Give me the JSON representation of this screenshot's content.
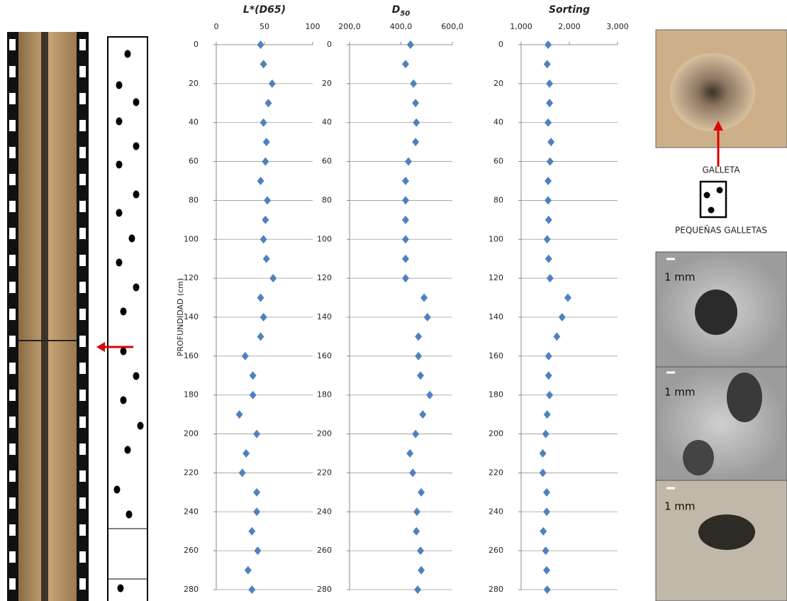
{
  "chart_data": [
    {
      "type": "scatter",
      "title": "L*(D65)",
      "y_label": "PROFUNDIDAD (cm)",
      "color": "#4f81bd",
      "x": [
        46,
        49,
        58,
        54,
        49,
        52,
        51,
        46,
        53,
        51,
        49,
        52,
        59,
        46,
        49,
        46,
        30,
        38,
        38,
        24,
        42,
        31,
        27,
        42,
        42,
        37,
        43,
        33,
        37
      ],
      "y": [
        0,
        10,
        20,
        30,
        40,
        50,
        60,
        70,
        80,
        90,
        100,
        110,
        120,
        130,
        140,
        150,
        160,
        170,
        180,
        190,
        200,
        210,
        220,
        230,
        240,
        250,
        260,
        270,
        280
      ],
      "xlim": [
        0,
        100
      ],
      "xticks": [
        0,
        50,
        100
      ],
      "ylim": [
        0,
        280
      ],
      "yticks": [
        0,
        20,
        40,
        60,
        80,
        100,
        120,
        140,
        160,
        180,
        200,
        220,
        240,
        260,
        280
      ],
      "grid": true
    },
    {
      "type": "scatter",
      "title": "D",
      "title_subscript": "50",
      "color": "#4f81bd",
      "x": [
        437,
        418,
        449,
        457,
        460,
        457,
        429,
        418,
        418,
        418,
        418,
        418,
        418,
        490,
        503,
        468,
        468,
        476,
        512,
        485,
        457,
        435,
        446,
        479,
        462,
        460,
        476,
        479,
        465
      ],
      "y": [
        0,
        10,
        20,
        30,
        40,
        50,
        60,
        70,
        80,
        90,
        100,
        110,
        120,
        130,
        140,
        150,
        160,
        170,
        180,
        190,
        200,
        210,
        220,
        230,
        240,
        250,
        260,
        270,
        280
      ],
      "xlim": [
        200,
        600
      ],
      "xticks": [
        {
          "value": 200,
          "label": "200,0"
        },
        {
          "value": 400,
          "label": "400,0"
        },
        {
          "value": 600,
          "label": "600,0"
        }
      ],
      "ylim": [
        0,
        280
      ],
      "yticks": [
        0,
        20,
        40,
        60,
        80,
        100,
        120,
        140,
        160,
        180,
        200,
        220,
        240,
        260,
        280
      ],
      "grid": true
    },
    {
      "type": "scatter",
      "title": "Sorting",
      "color": "#4f81bd",
      "x": [
        1560,
        1540,
        1590,
        1590,
        1560,
        1620,
        1600,
        1560,
        1560,
        1570,
        1540,
        1570,
        1600,
        1970,
        1850,
        1740,
        1570,
        1570,
        1590,
        1540,
        1510,
        1450,
        1450,
        1530,
        1530,
        1460,
        1510,
        1530,
        1540
      ],
      "y": [
        0,
        10,
        20,
        30,
        40,
        50,
        60,
        70,
        80,
        90,
        100,
        110,
        120,
        130,
        140,
        150,
        160,
        170,
        180,
        190,
        200,
        210,
        220,
        230,
        240,
        250,
        260,
        270,
        280
      ],
      "xlim": [
        1000,
        3000
      ],
      "xticks": [
        {
          "value": 1000,
          "label": "1,000"
        },
        {
          "value": 2000,
          "label": "2,000"
        },
        {
          "value": 3000,
          "label": "3,000"
        }
      ],
      "ylim": [
        0,
        280
      ],
      "yticks": [
        0,
        20,
        40,
        60,
        80,
        100,
        120,
        140,
        160,
        180,
        200,
        220,
        240,
        260,
        280
      ],
      "grid": true
    }
  ],
  "figure": {
    "galleta": "GALLETA",
    "small_galletas": "PEQUEÑAS GALLETAS",
    "scale_labels": [
      "1 mm",
      "1 mm",
      "1 mm"
    ]
  }
}
